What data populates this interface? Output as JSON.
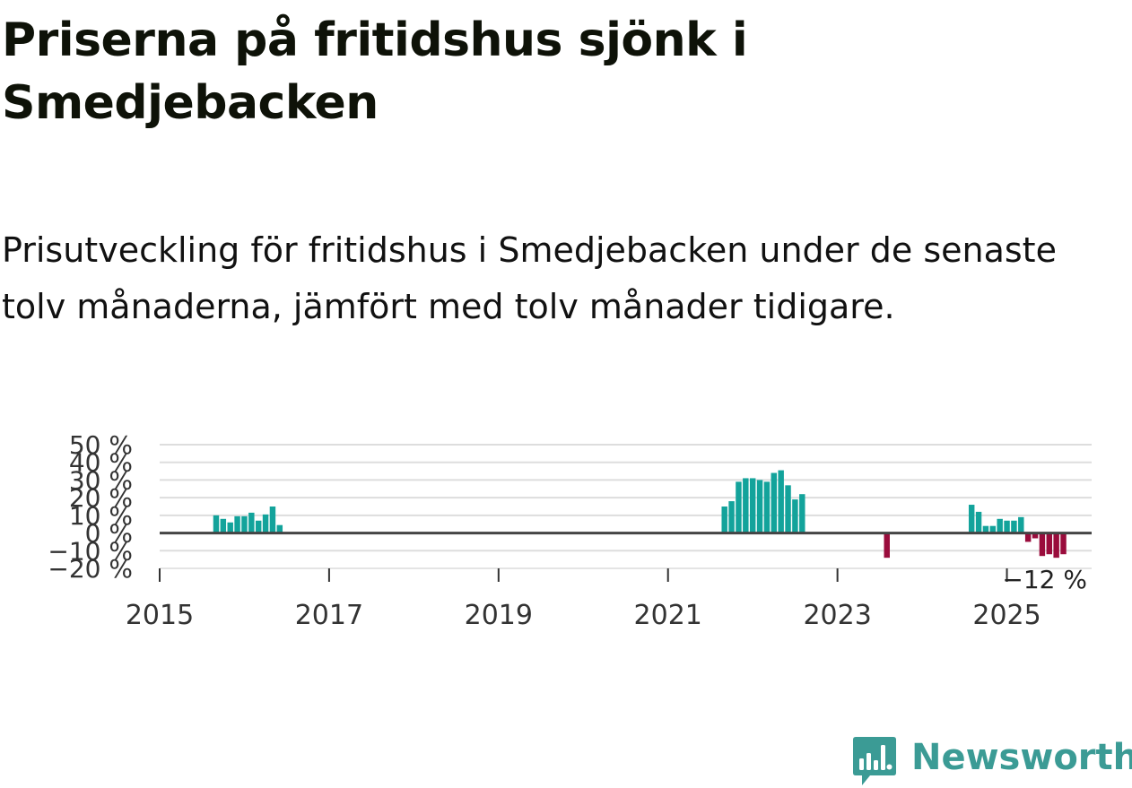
{
  "title": "Priserna på fritidshus sjönk i Smedjebacken",
  "subtitle": "Prisutveckling för fritidshus i Smedjebacken under de senaste tolv månaderna, jämfört med tolv månader tidigare.",
  "brand": {
    "name": "Newsworthy",
    "icon": "newsworthy-logo-icon",
    "color": "#3b9b95"
  },
  "chart_data": {
    "type": "bar",
    "xlabel": "",
    "ylabel": "",
    "y_unit": "%",
    "ylim": [
      -20,
      50
    ],
    "yticks": [
      {
        "value": 50,
        "label": "50 %"
      },
      {
        "value": 40,
        "label": "40 %"
      },
      {
        "value": 30,
        "label": "30 %"
      },
      {
        "value": 20,
        "label": "20 %"
      },
      {
        "value": 10,
        "label": "10 %"
      },
      {
        "value": 0,
        "label": "0 %"
      },
      {
        "value": -10,
        "label": "−10 %"
      },
      {
        "value": -20,
        "label": "−20 %"
      }
    ],
    "xlim": [
      "2015-01",
      "2026-01"
    ],
    "xticks": [
      {
        "date": "2015-01",
        "label": "2015"
      },
      {
        "date": "2017-01",
        "label": "2017"
      },
      {
        "date": "2019-01",
        "label": "2019"
      },
      {
        "date": "2021-01",
        "label": "2021"
      },
      {
        "date": "2023-01",
        "label": "2023"
      },
      {
        "date": "2025-01",
        "label": "2025"
      }
    ],
    "grid": true,
    "colors": {
      "positive": "#13a39b",
      "negative": "#9a0c3c",
      "grid": "#dddddd",
      "zero_line": "#444444"
    },
    "series": [
      {
        "points": [
          {
            "x": "2015-09",
            "y": 10
          },
          {
            "x": "2015-10",
            "y": 8
          },
          {
            "x": "2015-11",
            "y": 6
          },
          {
            "x": "2015-12",
            "y": 9.5
          },
          {
            "x": "2016-01",
            "y": 9.5
          },
          {
            "x": "2016-02",
            "y": 11.5
          },
          {
            "x": "2016-03",
            "y": 7
          },
          {
            "x": "2016-04",
            "y": 10.5
          },
          {
            "x": "2016-05",
            "y": 15
          },
          {
            "x": "2016-06",
            "y": 4.5
          },
          {
            "x": "2021-09",
            "y": 15
          },
          {
            "x": "2021-10",
            "y": 18
          },
          {
            "x": "2021-11",
            "y": 29
          },
          {
            "x": "2021-12",
            "y": 31
          },
          {
            "x": "2022-01",
            "y": 31
          },
          {
            "x": "2022-02",
            "y": 30
          },
          {
            "x": "2022-03",
            "y": 29
          },
          {
            "x": "2022-04",
            "y": 34
          },
          {
            "x": "2022-05",
            "y": 35.5
          },
          {
            "x": "2022-06",
            "y": 27
          },
          {
            "x": "2022-07",
            "y": 19
          },
          {
            "x": "2022-08",
            "y": 22
          },
          {
            "x": "2023-08",
            "y": -14
          },
          {
            "x": "2024-08",
            "y": 16
          },
          {
            "x": "2024-09",
            "y": 12
          },
          {
            "x": "2024-10",
            "y": 4
          },
          {
            "x": "2024-11",
            "y": 4
          },
          {
            "x": "2024-12",
            "y": 8
          },
          {
            "x": "2025-01",
            "y": 7
          },
          {
            "x": "2025-02",
            "y": 7
          },
          {
            "x": "2025-03",
            "y": 9
          },
          {
            "x": "2025-04",
            "y": -5
          },
          {
            "x": "2025-05",
            "y": -3
          },
          {
            "x": "2025-06",
            "y": -13
          },
          {
            "x": "2025-07",
            "y": -12
          },
          {
            "x": "2025-08",
            "y": -14
          },
          {
            "x": "2025-09",
            "y": -12
          }
        ]
      }
    ],
    "annotations": [
      {
        "x": "2025-09",
        "y": -12,
        "label": "−12 %"
      }
    ]
  }
}
